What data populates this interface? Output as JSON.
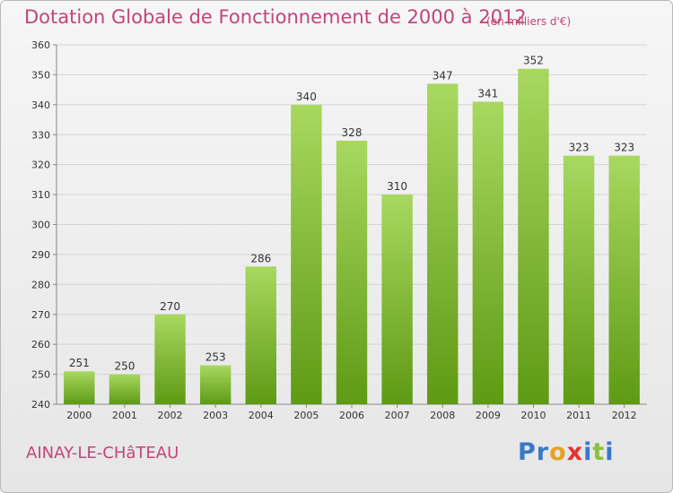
{
  "header": {
    "title": "Dotation Globale de Fonctionnement de 2000 à 2012",
    "unit": "(en milliers d'€)"
  },
  "footer": {
    "place": "AINAY-LE-CHâTEAU",
    "logo_letters": [
      "P",
      "r",
      "o",
      "x",
      "i",
      "t",
      "i"
    ]
  },
  "colors": {
    "title": "#c2457a",
    "bar_top": "#a8d860",
    "bar_bottom": "#5e9a14",
    "grid": "#d4d4d4",
    "logo": [
      "#3a78c8",
      "#3a78c8",
      "#e8a020",
      "#e83030",
      "#3a78c8",
      "#8bc040",
      "#3a78c8"
    ]
  },
  "chart_data": {
    "type": "bar",
    "title": "Dotation Globale de Fonctionnement de 2000 à 2012",
    "subtitle": "(en milliers d'€)",
    "categories": [
      "2000",
      "2001",
      "2002",
      "2003",
      "2004",
      "2005",
      "2006",
      "2007",
      "2008",
      "2009",
      "2010",
      "2011",
      "2012"
    ],
    "values": [
      251,
      250,
      270,
      253,
      286,
      340,
      328,
      310,
      347,
      341,
      352,
      323,
      323
    ],
    "ylim": [
      240,
      360
    ],
    "yticks": [
      240,
      250,
      260,
      270,
      280,
      290,
      300,
      310,
      320,
      330,
      340,
      350,
      360
    ],
    "grid": true,
    "xlabel": "",
    "ylabel": ""
  }
}
